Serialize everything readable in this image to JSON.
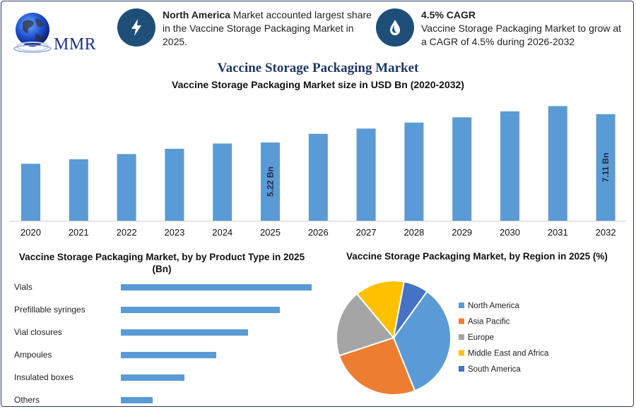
{
  "brand": {
    "logo_text": "MMR"
  },
  "header": {
    "info1": {
      "bold": "North America",
      "text": " Market accounted largest share in the Vaccine Storage Packaging Market in 2025.",
      "icon": "lightning-icon"
    },
    "info2": {
      "bold": "4.5% CAGR",
      "text": "Vaccine Storage Packaging Market to grow at a CAGR of 4.5% during 2026-2032",
      "icon": "drop-icon"
    }
  },
  "title": "Vaccine Storage Packaging Market",
  "colors": {
    "bar_blue": "#5b9bd5",
    "dark_navy": "#1f4e79",
    "north_america": "#5b9bd5",
    "asia_pacific": "#ed7d31",
    "europe": "#a5a5a5",
    "middle_east_africa": "#ffc000",
    "south_america": "#4472c4"
  },
  "chart_data": [
    {
      "type": "bar",
      "title": "Vaccine Storage Packaging Market size in USD Bn (2020-2032)",
      "categories": [
        "2020",
        "2021",
        "2022",
        "2023",
        "2024",
        "2025",
        "2026",
        "2027",
        "2028",
        "2029",
        "2030",
        "2031",
        "2032"
      ],
      "values": [
        3.8,
        4.1,
        4.45,
        4.8,
        5.15,
        5.22,
        5.8,
        6.15,
        6.55,
        6.9,
        7.3,
        7.65,
        7.11
      ],
      "data_labels": {
        "2025": "5.22 Bn",
        "2032": "7.11 Bn"
      },
      "ylim": [
        0,
        8
      ]
    },
    {
      "type": "bar",
      "orientation": "horizontal",
      "title": "Vaccine Storage Packaging Market, by by Product Type in 2025 (Bn)",
      "categories": [
        "Vials",
        "Prefillable syringes",
        "Vial closures",
        "Ampoules",
        "Insulated boxes",
        "Others"
      ],
      "values": [
        6.0,
        5.0,
        4.0,
        3.0,
        2.0,
        1.0
      ],
      "xlim": [
        0,
        6.0
      ]
    },
    {
      "type": "pie",
      "title": "Vaccine Storage Packaging Market, by Region in 2025 (%)",
      "categories": [
        "North America",
        "Asia Pacific",
        "Europe",
        "Middle East and Africa",
        "South America"
      ],
      "values": [
        34,
        26,
        19,
        14,
        7
      ],
      "legend": "right"
    }
  ]
}
